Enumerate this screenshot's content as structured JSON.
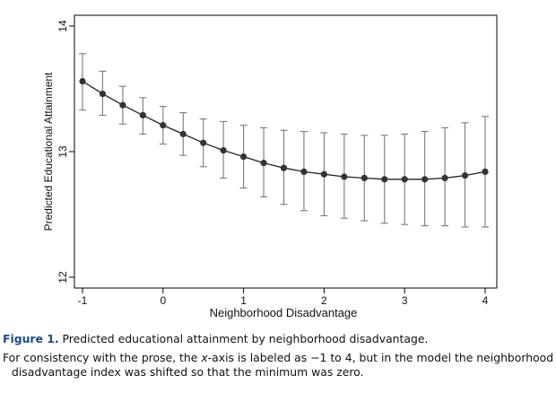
{
  "chart_data": {
    "type": "line",
    "title": "",
    "xlabel": "Neighborhood Disadvantage",
    "ylabel": "Predicted Educational Attainment",
    "xlim": [
      -1,
      4
    ],
    "ylim": [
      12,
      14
    ],
    "xticks": [
      -1,
      0,
      1,
      2,
      3,
      4
    ],
    "xtick_labels": [
      "-1",
      "0",
      "1",
      "2",
      "3",
      "4"
    ],
    "yticks": [
      12,
      13,
      14
    ],
    "ytick_labels": [
      "12",
      "13",
      "14"
    ],
    "grid": false,
    "series": [
      {
        "name": "Predicted educational attainment",
        "x": [
          -1,
          -0.75,
          -0.5,
          -0.25,
          0,
          0.25,
          0.5,
          0.75,
          1,
          1.25,
          1.5,
          1.75,
          2,
          2.25,
          2.5,
          2.75,
          3,
          3.25,
          3.5,
          3.75,
          4
        ],
        "y": [
          13.56,
          13.46,
          13.37,
          13.29,
          13.21,
          13.14,
          13.07,
          13.01,
          12.96,
          12.91,
          12.87,
          12.84,
          12.82,
          12.8,
          12.79,
          12.78,
          12.78,
          12.78,
          12.79,
          12.81,
          12.84
        ],
        "ci_lower": [
          13.33,
          13.29,
          13.22,
          13.14,
          13.06,
          12.97,
          12.88,
          12.79,
          12.71,
          12.64,
          12.58,
          12.53,
          12.49,
          12.47,
          12.45,
          12.43,
          12.42,
          12.41,
          12.41,
          12.4,
          12.4
        ],
        "ci_upper": [
          13.78,
          13.64,
          13.52,
          13.43,
          13.36,
          13.31,
          13.26,
          13.24,
          13.21,
          13.19,
          13.17,
          13.16,
          13.15,
          13.14,
          13.13,
          13.13,
          13.14,
          13.16,
          13.19,
          13.23,
          13.28
        ]
      }
    ]
  },
  "caption": {
    "figure_label": "Figure 1.",
    "figure_text": " Predicted educational attainment by neighborhood disadvantage.",
    "note_part1": "For consistency with the prose, the ",
    "note_italic": "x",
    "note_part2": "-axis is labeled as −1 to 4, but in the model the neighborhood",
    "note_line2": "disadvantage index was shifted so that the minimum was zero."
  }
}
